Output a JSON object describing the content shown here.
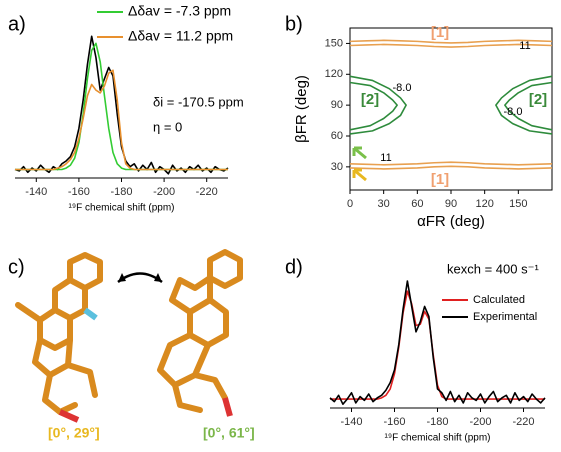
{
  "chart_data": [
    {
      "type": "line",
      "panel_label": "a)",
      "x_label": "¹⁹F chemical shift (ppm)",
      "x": [
        -130,
        -132,
        -134,
        -136,
        -138,
        -140,
        -142,
        -144,
        -146,
        -148,
        -150,
        -152,
        -154,
        -156,
        -158,
        -160,
        -162,
        -164,
        -166,
        -168,
        -170,
        -172,
        -174,
        -176,
        -178,
        -180,
        -182,
        -184,
        -186,
        -188,
        -190,
        -192,
        -194,
        -196,
        -198,
        -200,
        -202,
        -204,
        -206,
        -208,
        -210,
        -212,
        -214,
        -216,
        -218,
        -220,
        -222,
        -224,
        -226,
        -228,
        -230
      ],
      "xlim": [
        -130,
        -230
      ],
      "xticks": [
        -140,
        -160,
        -180,
        -200,
        -220
      ],
      "ylim": [
        0,
        1.15
      ],
      "series": [
        {
          "color": "#000000",
          "values": [
            0.06,
            0.05,
            0.08,
            0.04,
            0.07,
            0.05,
            0.09,
            0.06,
            0.04,
            0.08,
            0.06,
            0.1,
            0.12,
            0.15,
            0.22,
            0.35,
            0.55,
            0.8,
            1.0,
            0.85,
            0.62,
            0.7,
            0.78,
            0.72,
            0.45,
            0.22,
            0.12,
            0.08,
            0.1,
            0.05,
            0.09,
            0.06,
            0.11,
            0.04,
            0.08,
            0.06,
            0.03,
            0.09,
            0.05,
            0.07,
            0.04,
            0.08,
            0.06,
            0.09,
            0.05,
            0.07,
            0.04,
            0.08,
            0.06,
            0.05,
            0.07
          ]
        },
        {
          "name": "Δδav = -7.3 ppm",
          "color": "#33cc33",
          "values": [
            0.06,
            0.06,
            0.06,
            0.06,
            0.06,
            0.06,
            0.06,
            0.06,
            0.06,
            0.06,
            0.06,
            0.06,
            0.07,
            0.09,
            0.14,
            0.25,
            0.45,
            0.7,
            0.9,
            0.95,
            0.82,
            0.58,
            0.35,
            0.18,
            0.1,
            0.07,
            0.06,
            0.06,
            0.06,
            0.06,
            0.06,
            0.06,
            0.06,
            0.06,
            0.06,
            0.06,
            0.06,
            0.06,
            0.06,
            0.06,
            0.06,
            0.06,
            0.06,
            0.06,
            0.06,
            0.06,
            0.06,
            0.06,
            0.06,
            0.06,
            0.06
          ]
        },
        {
          "name": "Δδav = 11.2 ppm",
          "color": "#e8902e",
          "values": [
            0.06,
            0.06,
            0.06,
            0.06,
            0.06,
            0.06,
            0.06,
            0.06,
            0.06,
            0.06,
            0.07,
            0.08,
            0.1,
            0.13,
            0.18,
            0.28,
            0.42,
            0.58,
            0.66,
            0.62,
            0.6,
            0.65,
            0.74,
            0.76,
            0.55,
            0.25,
            0.1,
            0.07,
            0.06,
            0.06,
            0.06,
            0.06,
            0.06,
            0.06,
            0.06,
            0.06,
            0.06,
            0.06,
            0.06,
            0.06,
            0.06,
            0.06,
            0.06,
            0.06,
            0.06,
            0.06,
            0.06,
            0.06,
            0.06,
            0.06,
            0.06
          ]
        }
      ],
      "annotations": [
        "δi = -170.5 ppm",
        "η = 0"
      ]
    },
    {
      "type": "line",
      "panel_label": "b)",
      "x_label": "αFR (deg)",
      "y_label": "βFR (deg)",
      "xlim": [
        0,
        180
      ],
      "xticks": [
        0,
        30,
        60,
        90,
        120,
        150
      ],
      "ylim": [
        7.5,
        165
      ],
      "yticks": [
        30,
        60,
        90,
        120,
        150
      ],
      "series": [
        {
          "color": "#e8a050",
          "x": [
            0,
            15,
            30,
            45,
            60,
            75,
            90,
            105,
            120,
            135,
            150,
            165,
            180
          ],
          "values": [
            152,
            152.5,
            153,
            152.5,
            152,
            151,
            150.5,
            151,
            152,
            152.5,
            153,
            152.5,
            152
          ]
        },
        {
          "color": "#e8a050",
          "x": [
            0,
            15,
            30,
            45,
            60,
            75,
            90,
            105,
            120,
            135,
            150,
            165,
            180
          ],
          "values": [
            148,
            148.5,
            149,
            148.5,
            148,
            147,
            146.5,
            147,
            148,
            148.5,
            149,
            148.5,
            148
          ]
        },
        {
          "color": "#e8a050",
          "x": [
            0,
            15,
            30,
            45,
            60,
            75,
            90,
            105,
            120,
            135,
            150,
            165,
            180
          ],
          "values": [
            33,
            32.5,
            32,
            32.5,
            33,
            34,
            34.5,
            34,
            33,
            32.5,
            32,
            32.5,
            33
          ]
        },
        {
          "color": "#e8a050",
          "x": [
            0,
            15,
            30,
            45,
            60,
            75,
            90,
            105,
            120,
            135,
            150,
            165,
            180
          ],
          "values": [
            29,
            28.5,
            28,
            28.5,
            29,
            30,
            30.5,
            30,
            29,
            28.5,
            28,
            28.5,
            29
          ]
        },
        {
          "color": "#2e8b3c",
          "x": [
            0,
            20,
            35,
            45,
            50,
            45,
            35,
            20,
            0
          ],
          "values": [
            118,
            114,
            106,
            97,
            90,
            80,
            72,
            65,
            62
          ]
        },
        {
          "color": "#2e8b3c",
          "x": [
            0,
            18,
            30,
            38,
            42,
            38,
            30,
            18,
            0
          ],
          "values": [
            112,
            109,
            102,
            95,
            90,
            84,
            77,
            70,
            66
          ]
        },
        {
          "color": "#2e8b3c",
          "x": [
            180,
            160,
            145,
            135,
            130,
            135,
            145,
            160,
            180
          ],
          "values": [
            118,
            114,
            106,
            97,
            90,
            80,
            72,
            65,
            62
          ]
        },
        {
          "color": "#2e8b3c",
          "x": [
            180,
            162,
            150,
            142,
            138,
            142,
            150,
            162,
            180
          ],
          "values": [
            112,
            109,
            102,
            95,
            90,
            84,
            77,
            70,
            66
          ]
        }
      ],
      "annotations": [
        "[1]",
        "[1]",
        "[2]",
        "[2]",
        "11",
        "11",
        "-8.0",
        "-8.0"
      ]
    },
    {
      "type": "line",
      "panel_label": "d)",
      "x_label": "¹⁹F chemical shift (ppm)",
      "x": [
        -130,
        -132,
        -134,
        -136,
        -138,
        -140,
        -142,
        -144,
        -146,
        -148,
        -150,
        -152,
        -154,
        -156,
        -158,
        -160,
        -162,
        -164,
        -166,
        -168,
        -170,
        -172,
        -174,
        -176,
        -178,
        -180,
        -182,
        -184,
        -186,
        -188,
        -190,
        -192,
        -194,
        -196,
        -198,
        -200,
        -202,
        -204,
        -206,
        -208,
        -210,
        -212,
        -214,
        -216,
        -218,
        -220,
        -222,
        -224,
        -226,
        -228,
        -230
      ],
      "xlim": [
        -130,
        -230
      ],
      "xticks": [
        -140,
        -160,
        -180,
        -200,
        -220
      ],
      "ylim": [
        0,
        1.15
      ],
      "series": [
        {
          "name": "Calculated",
          "color": "#e02020",
          "values": [
            0.07,
            0.07,
            0.07,
            0.07,
            0.07,
            0.07,
            0.07,
            0.07,
            0.07,
            0.07,
            0.07,
            0.07,
            0.08,
            0.1,
            0.15,
            0.27,
            0.48,
            0.75,
            0.92,
            0.82,
            0.65,
            0.66,
            0.76,
            0.7,
            0.42,
            0.18,
            0.09,
            0.07,
            0.07,
            0.07,
            0.07,
            0.07,
            0.07,
            0.07,
            0.07,
            0.07,
            0.07,
            0.07,
            0.07,
            0.07,
            0.07,
            0.07,
            0.07,
            0.07,
            0.07,
            0.07,
            0.07,
            0.07,
            0.07,
            0.07,
            0.07
          ]
        },
        {
          "name": "Experimental",
          "color": "#000000",
          "values": [
            0.08,
            0.05,
            0.1,
            0.03,
            0.07,
            0.12,
            0.04,
            0.09,
            0.06,
            0.11,
            0.05,
            0.08,
            0.1,
            0.14,
            0.2,
            0.3,
            0.5,
            0.78,
            1.0,
            0.8,
            0.6,
            0.68,
            0.8,
            0.72,
            0.4,
            0.15,
            0.12,
            0.06,
            0.13,
            0.05,
            0.1,
            0.04,
            0.12,
            0.08,
            0.06,
            0.11,
            0.04,
            0.09,
            0.13,
            0.05,
            0.08,
            0.1,
            0.04,
            0.12,
            0.06,
            0.09,
            0.05,
            0.11,
            0.07,
            0.04,
            0.08
          ]
        }
      ],
      "annotations": [
        "kexch = 400 s⁻¹"
      ]
    }
  ],
  "molecules": {
    "panel_label": "c)",
    "labels": [
      "[0°, 29°]",
      "[0°, 61°]"
    ]
  }
}
